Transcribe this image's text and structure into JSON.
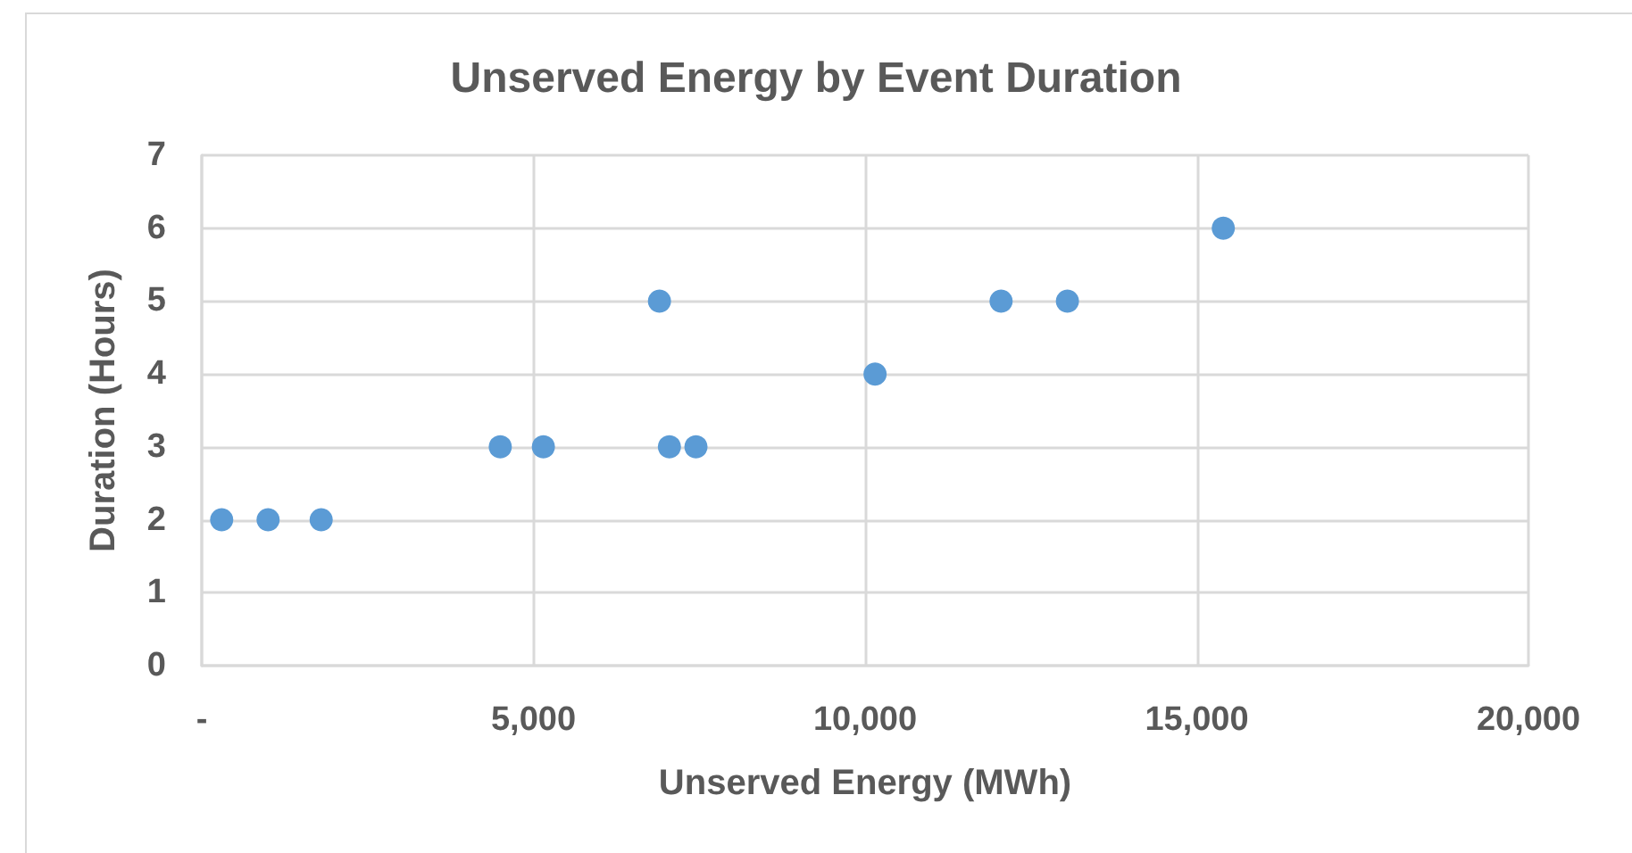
{
  "chart_data": {
    "type": "scatter",
    "title": "Unserved Energy by Event Duration",
    "xlabel": "Unserved Energy (MWh)",
    "ylabel": "Duration (Hours)",
    "x": [
      300,
      1000,
      1800,
      4500,
      5150,
      6900,
      7050,
      7450,
      10150,
      12050,
      13050,
      15400
    ],
    "values": [
      2,
      2,
      2,
      3,
      3,
      5,
      3,
      3,
      4,
      5,
      5,
      6
    ],
    "color": "#5b9bd5",
    "marker": "circle",
    "xlim": [
      0,
      20000
    ],
    "xticks": [
      {
        "value": 0,
        "label": "-"
      },
      {
        "value": 5000,
        "label": "5,000"
      },
      {
        "value": 10000,
        "label": "10,000"
      },
      {
        "value": 15000,
        "label": "15,000"
      },
      {
        "value": 20000,
        "label": "20,000"
      }
    ],
    "ylim": [
      0,
      7
    ],
    "yticks": [
      0,
      1,
      2,
      3,
      4,
      5,
      6,
      7
    ],
    "grid": true
  }
}
